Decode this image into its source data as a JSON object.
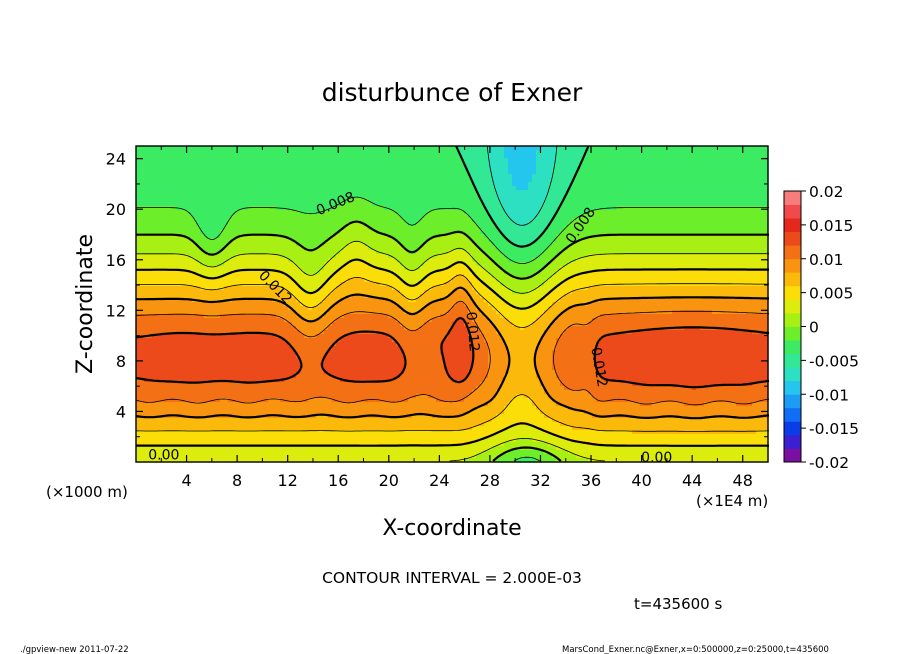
{
  "chart_data": {
    "type": "heatmap",
    "subtype": "filled-contour",
    "title": "disturbunce of Exner",
    "xlabel": "X-coordinate",
    "ylabel": "Z-coordinate",
    "x_unit_note": "(×1E4 m)",
    "y_unit_note": "(×1000 m)",
    "x_ticks": [
      "4",
      "8",
      "12",
      "16",
      "20",
      "24",
      "28",
      "32",
      "36",
      "40",
      "44",
      "48"
    ],
    "y_ticks": [
      "4",
      "8",
      "12",
      "16",
      "20",
      "24"
    ],
    "xlim": [
      0,
      50
    ],
    "ylim": [
      0,
      25
    ],
    "contour_interval_label": "CONTOUR INTERVAL = 2.000E-03",
    "contour_interval": 0.002,
    "time_label": "t=435600 s",
    "contour_labels": [
      {
        "text": "0.008",
        "x": 15.8,
        "z": 20.4,
        "angle": -22
      },
      {
        "text": "0.008",
        "x": 35.2,
        "z": 18.7,
        "angle": -55
      },
      {
        "text": "0.012",
        "x": 11.0,
        "z": 13.8,
        "angle": 45
      },
      {
        "text": "0.012",
        "x": 26.6,
        "z": 10.3,
        "angle": 85
      },
      {
        "text": "0.012",
        "x": 36.6,
        "z": 7.5,
        "angle": 80
      },
      {
        "text": "0.00",
        "x": 2.2,
        "z": 0.5,
        "angle": 0
      },
      {
        "text": "0.00",
        "x": 41.2,
        "z": 0.3,
        "angle": 0
      }
    ],
    "colorbar": {
      "min": -0.02,
      "max": 0.02,
      "tick_labels": [
        "0.02",
        "0.015",
        "0.01",
        "0.005",
        "0",
        "-0.005",
        "-0.01",
        "-0.015",
        "-0.02"
      ],
      "colors": [
        "#7a0fa0",
        "#3b1fd0",
        "#0a3ce8",
        "#0f6ef5",
        "#1d9cf5",
        "#25c6ee",
        "#2ee0c2",
        "#33e895",
        "#3bec62",
        "#6cee2a",
        "#a8ef14",
        "#dcec0c",
        "#fbdd08",
        "#fbb90c",
        "#f99410",
        "#f37014",
        "#ec4a1a",
        "#e4281e",
        "#f04a4a",
        "#f87c7c"
      ]
    }
  },
  "footer": {
    "left": "./gpview-new   2011-07-22",
    "right": "MarsCond_Exner.nc@Exner,x=0:500000,z=0:25000,t=435600"
  }
}
